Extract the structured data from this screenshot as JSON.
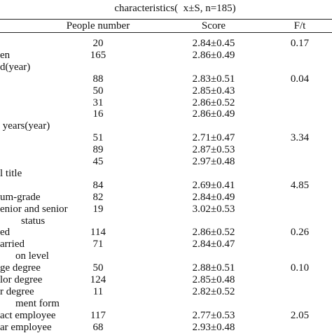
{
  "title": "characteristics(  x±S, n=185)",
  "table": {
    "header": [
      "People number",
      "Score",
      "F/t"
    ],
    "rows": [
      {
        "n": "20",
        "score": "2.84±0.45",
        "f": "0.17"
      },
      {
        "label": "en",
        "n": "165",
        "score": "2.86±0.49"
      },
      {
        "label": "d(year)"
      },
      {
        "n": "88",
        "score": "2.83±0.51",
        "f": "0.04"
      },
      {
        "n": "50",
        "score": "2.85±0.43"
      },
      {
        "n": "31",
        "score": "2.86±0.52"
      },
      {
        "n": "16",
        "score": "2.86±0.49"
      },
      {
        "label": " years(year)"
      },
      {
        "n": "51",
        "score": "2.71±0.47",
        "f": "3.34"
      },
      {
        "n": "89",
        "score": "2.87±0.53"
      },
      {
        "n": "45",
        "score": "2.97±0.48"
      },
      {
        "label": "l title"
      },
      {
        "n": "84",
        "score": "2.69±0.41",
        "f": "4.85"
      },
      {
        "label": "um-grade",
        "n": "82",
        "score": "2.84±0.49"
      },
      {
        "label": "enior and senior",
        "n": "19",
        "score": "3.02±0.53"
      },
      {
        "label": "status"
      },
      {
        "label": "ed",
        "n": "114",
        "score": "2.86±0.52",
        "f": "0.26"
      },
      {
        "label": "arried",
        "n": "71",
        "score": "2.84±0.47"
      },
      {
        "label": "on level"
      },
      {
        "label": "ge degree",
        "n": "50",
        "score": "2.88±0.51",
        "f": "0.10"
      },
      {
        "label": "lor degree",
        "n": "124",
        "score": "2.85±0.48"
      },
      {
        "label": "r degree",
        "n": "11",
        "score": "2.82±0.52"
      },
      {
        "label": "ment form"
      },
      {
        "label": "act employee",
        "n": "117",
        "score": "2.77±0.53",
        "f": "2.05"
      },
      {
        "label": "ar employee",
        "n": "68",
        "score": "2.93±0.48"
      }
    ]
  }
}
